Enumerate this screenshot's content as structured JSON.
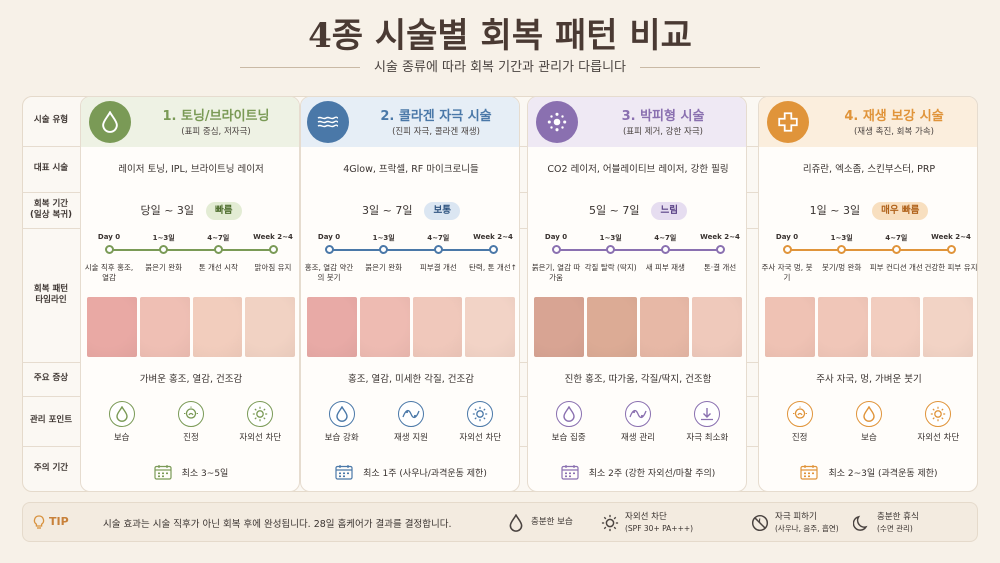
{
  "title": "4종 시술별 회복 패턴 비교",
  "subtitle": "시술 종류에 따라 회복 기간과 관리가 다릅니다",
  "row_labels": {
    "type": "시술 유형",
    "representative": "대표 시술",
    "recovery_line1": "회복 기간",
    "recovery_line2": "(일상 복귀)",
    "timeline_line1": "회복 패턴",
    "timeline_line2": "타임라인",
    "symptoms": "주요 증상",
    "care": "관리 포인트",
    "caution": "주의 기간"
  },
  "columns": [
    {
      "title": "1. 토닝/브라이트닝",
      "subtitle": "(표피 중심, 저자극)",
      "icon": "droplet-icon",
      "accent": "#7a9a56",
      "head_bg": "#eef2e4",
      "representative": "레이저 토닝, IPL, 브라이트닝 레이저",
      "recovery": "당일 ~ 3일",
      "badge": "빠름",
      "badge_bg": "#e3ecd4",
      "badge_color": "#4f6e2f",
      "timeline": [
        {
          "day": "Day 0",
          "desc": "시술 직후 홍조, 열감"
        },
        {
          "day": "1~3일",
          "desc": "붉은기 완화"
        },
        {
          "day": "4~7일",
          "desc": "톤 개선 시작"
        },
        {
          "day": "Week 2~4",
          "desc": "맑아짐 유지"
        }
      ],
      "photo_colors": [
        "#e9a9a4",
        "#efbfb4",
        "#f2cdbd",
        "#f1d2c3"
      ],
      "symptoms": "가벼운 홍조, 열감, 건조감",
      "care": [
        {
          "icon": "droplet-icon",
          "label": "보습"
        },
        {
          "icon": "soothe-icon",
          "label": "진정"
        },
        {
          "icon": "sun-icon",
          "label": "자외선 차단"
        }
      ],
      "caution": "최소 3~5일"
    },
    {
      "title": "2. 콜라겐 자극 시술",
      "subtitle": "(진피 자극, 콜라겐 재생)",
      "icon": "wave-icon",
      "accent": "#4a78a8",
      "head_bg": "#e6eef6",
      "representative": "4Glow, 프락셀, RF 마이크로니들",
      "recovery": "3일 ~ 7일",
      "badge": "보통",
      "badge_bg": "#dbe6f2",
      "badge_color": "#2f5480",
      "timeline": [
        {
          "day": "Day 0",
          "desc": "홍조, 열감 약간의 붓기"
        },
        {
          "day": "1~3일",
          "desc": "붉은기 완화"
        },
        {
          "day": "4~7일",
          "desc": "피부결 개선"
        },
        {
          "day": "Week 2~4",
          "desc": "탄력, 톤 개선↑"
        }
      ],
      "photo_colors": [
        "#e8aaa6",
        "#eebbb2",
        "#f0c8bb",
        "#f2d3c6"
      ],
      "symptoms": "홍조, 열감, 미세한 각질, 건조감",
      "care": [
        {
          "icon": "droplet-icon",
          "label": "보습 강화"
        },
        {
          "icon": "regen-icon",
          "label": "재생 지원"
        },
        {
          "icon": "sun-icon",
          "label": "자외선 차단"
        }
      ],
      "caution": "최소 1주 (사우나/과격운동 제한)"
    },
    {
      "title": "3. 박피형 시술",
      "subtitle": "(표피 제거, 강한 자극)",
      "icon": "dots-icon",
      "accent": "#8a70b0",
      "head_bg": "#efe9f4",
      "representative": "CO2 레이저, 어블레이티브 레이저, 강한 필링",
      "recovery": "5일 ~ 7일",
      "badge": "느림",
      "badge_bg": "#e6ddf0",
      "badge_color": "#5a4286",
      "timeline": [
        {
          "day": "Day 0",
          "desc": "붉은기, 열감 따가움"
        },
        {
          "day": "1~3일",
          "desc": "각질 탈락 (딱지)"
        },
        {
          "day": "4~7일",
          "desc": "새 피부 재생"
        },
        {
          "day": "Week 2~4",
          "desc": "톤·결 개선"
        }
      ],
      "photo_colors": [
        "#d8a493",
        "#dcab95",
        "#e7b8a6",
        "#efc9bb"
      ],
      "symptoms": "진한 홍조, 따가움, 각질/딱지, 건조함",
      "care": [
        {
          "icon": "droplet-icon",
          "label": "보습 집중"
        },
        {
          "icon": "regen-icon",
          "label": "재생 관리"
        },
        {
          "icon": "minimize-icon",
          "label": "자극 최소화"
        }
      ],
      "caution": "최소 2주 (강한 자외선/마찰 주의)"
    },
    {
      "title": "4. 재생 보강 시술",
      "subtitle": "(재생 촉진, 회복 가속)",
      "icon": "plus-icon",
      "accent": "#e0943a",
      "head_bg": "#fbeedd",
      "representative": "리쥬란, 엑소좀, 스킨부스터, PRP",
      "recovery": "1일 ~ 3일",
      "badge": "매우 빠름",
      "badge_bg": "#f8dfbf",
      "badge_color": "#b0621a",
      "timeline": [
        {
          "day": "Day 0",
          "desc": "주사 자국 멍, 붓기"
        },
        {
          "day": "1~3일",
          "desc": "붓기/멍 완화"
        },
        {
          "day": "4~7일",
          "desc": "피부 컨디션 개선"
        },
        {
          "day": "Week 2~4",
          "desc": "건강한 피부 유지"
        }
      ],
      "photo_colors": [
        "#efc2b4",
        "#f0c6b8",
        "#f2cdbf",
        "#f2d3c5"
      ],
      "symptoms": "주사 자국, 멍, 가벼운 붓기",
      "care": [
        {
          "icon": "soothe-icon",
          "label": "진정"
        },
        {
          "icon": "droplet-icon",
          "label": "보습"
        },
        {
          "icon": "sun-icon",
          "label": "자외선 차단"
        }
      ],
      "caution": "최소 2~3일 (과격운동 제한)"
    }
  ],
  "tip": {
    "label": "TIP",
    "text": "시술 효과는 시술 직후가 아닌 회복 후에 완성됩니다. 28일 홈케어가 결과를 결정합니다.",
    "icon": "bulb-icon",
    "legend": [
      {
        "icon": "droplet-icon",
        "line1": "충분한 보습",
        "line2": ""
      },
      {
        "icon": "sun-icon",
        "line1": "자외선 차단",
        "line2": "(SPF 30+ PA+++)"
      },
      {
        "icon": "no-irritation-icon",
        "line1": "자극 피하기",
        "line2": "(사우나, 음주, 흡연)"
      },
      {
        "icon": "moon-icon",
        "line1": "충분한 휴식",
        "line2": "(수면 관리)"
      }
    ]
  }
}
